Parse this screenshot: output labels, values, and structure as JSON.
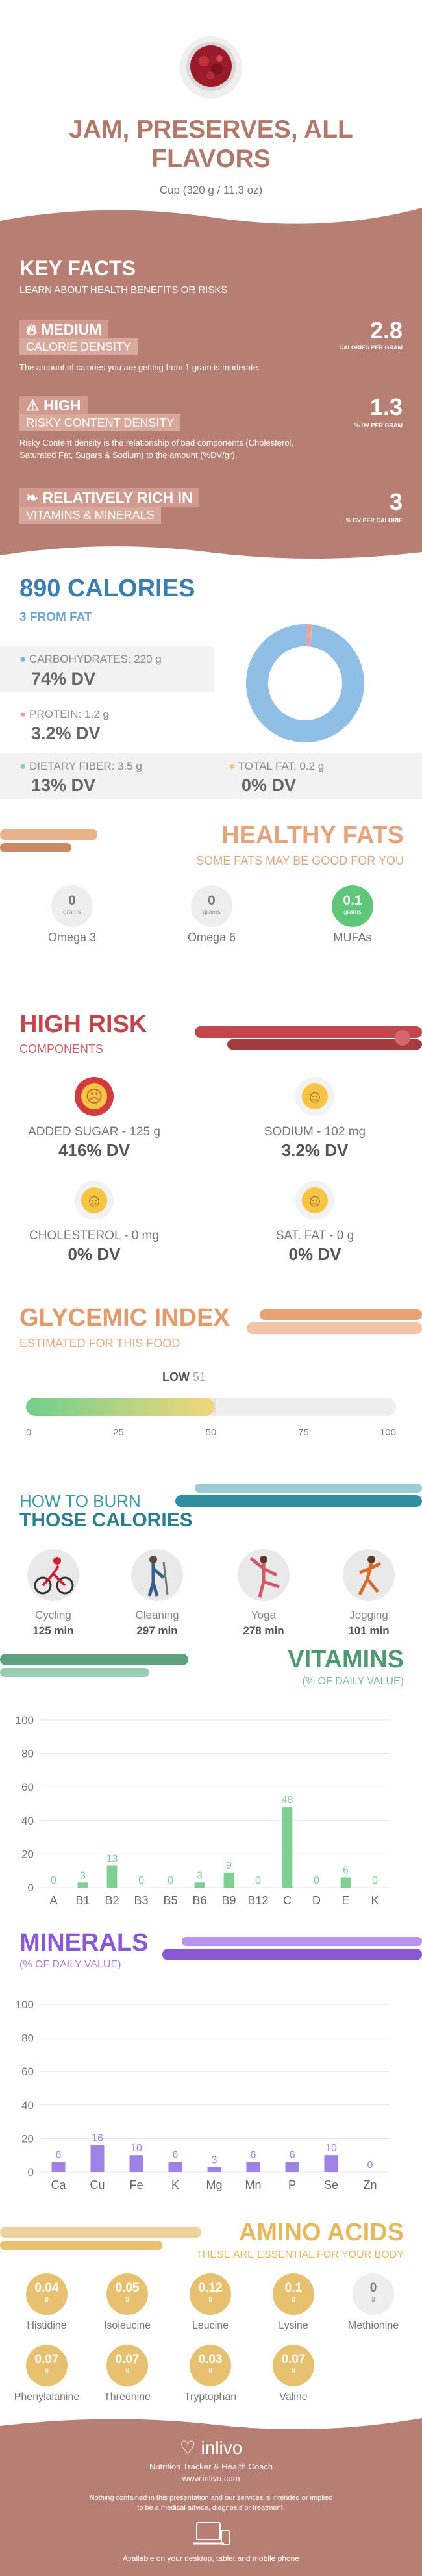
{
  "header": {
    "title_line1": "JAM, PRESERVES, ALL",
    "title_line2": "FLAVORS",
    "serving": "Cup (320 g / 11.3 oz)"
  },
  "key_facts": {
    "title": "KEY FACTS",
    "subtitle": "LEARN ABOUT HEALTH BENEFITS OR RISKS",
    "calorie": {
      "level": "MEDIUM",
      "label": "CALORIE DENSITY",
      "desc": "The amount of calories you are getting from 1 gram is moderate.",
      "value": "2.8",
      "unit": "CALORIES PER GRAM"
    },
    "risky": {
      "level": "HIGH",
      "label": "RISKY CONTENT DENSITY",
      "desc": "Risky Content density is the relationship of bad components (Cholesterol, Saturated Fat, Sugars & Sodium) to the amount (%DV/gr).",
      "value": "1.3",
      "unit": "% DV PER GRAM"
    },
    "vitamins": {
      "level": "RELATIVELY RICH  IN",
      "label": "VITAMINS & MINERALS",
      "value": "3",
      "unit": "% DV PER CALORIE"
    }
  },
  "calories": {
    "title": "890 CALORIES",
    "from_fat": "3 FROM FAT",
    "carbs_label": "CARBOHYDRATES: 220 g",
    "carbs_dv": "74% DV",
    "protein_label": "PROTEIN: 1.2 g",
    "protein_dv": "3.2% DV",
    "fiber_label": "DIETARY FIBER: 3.5 g",
    "fiber_dv": "13% DV",
    "fat_label": "TOTAL FAT: 0.2 g",
    "fat_dv": "0% DV",
    "donut": {
      "carbs_pct": 98.5,
      "protein_pct": 1.3,
      "fat_pct": 0.2
    }
  },
  "healthy_fats": {
    "title": "HEALTHY FATS",
    "subtitle": "SOME FATS MAY BE GOOD FOR YOU",
    "items": [
      {
        "value": "0",
        "unit": "grams",
        "name": "Omega 3"
      },
      {
        "value": "0",
        "unit": "grams",
        "name": "Omega 6"
      },
      {
        "value": "0.1",
        "unit": "grams",
        "name": "MUFAs"
      }
    ]
  },
  "high_risk": {
    "title": "HIGH RISK",
    "subtitle": "COMPONENTS",
    "items": [
      {
        "label": "ADDED SUGAR - 125 g",
        "dv": "416% DV"
      },
      {
        "label": "SODIUM - 102 mg",
        "dv": "3.2% DV"
      },
      {
        "label": "CHOLESTEROL - 0 mg",
        "dv": "0% DV"
      },
      {
        "label": "SAT. FAT - 0 g",
        "dv": "0% DV"
      }
    ]
  },
  "glycemic": {
    "title": "GLYCEMIC INDEX",
    "subtitle": "ESTIMATED FOR THIS FOOD",
    "level": "LOW",
    "value": 51,
    "ticks": [
      "0",
      "25",
      "50",
      "75",
      "100"
    ]
  },
  "burn": {
    "title1": "HOW TO BURN",
    "title2": "THOSE CALORIES",
    "items": [
      {
        "name": "Cycling",
        "time": "125 min"
      },
      {
        "name": "Cleaning",
        "time": "297 min"
      },
      {
        "name": "Yoga",
        "time": "278 min"
      },
      {
        "name": "Jogging",
        "time": "101 min"
      }
    ]
  },
  "vitamins": {
    "title": "VITAMINS",
    "subtitle": "(% OF DAILY VALUE)",
    "chart_data": {
      "type": "bar",
      "categories": [
        "A",
        "B1",
        "B2",
        "B3",
        "B5",
        "B6",
        "B9",
        "B12",
        "C",
        "D",
        "E",
        "K"
      ],
      "values": [
        0,
        3,
        13,
        0,
        0,
        3,
        9,
        0,
        48,
        0,
        6,
        0
      ],
      "labels": [
        "0",
        "3",
        "13",
        "0",
        "0",
        "3",
        "9",
        "0",
        "48",
        "0",
        "6",
        "0"
      ],
      "ylim": [
        0,
        100
      ],
      "yticks": [
        "0",
        "20",
        "40",
        "60",
        "80",
        "100"
      ]
    }
  },
  "minerals": {
    "title": "MINERALS",
    "subtitle": "(% OF DAILY VALUE)",
    "chart_data": {
      "type": "bar",
      "categories": [
        "Ca",
        "Cu",
        "Fe",
        "K",
        "Mg",
        "Mn",
        "P",
        "Se",
        "Zn"
      ],
      "values": [
        6,
        16,
        10,
        6,
        3,
        6,
        6,
        10,
        0
      ],
      "labels": [
        "6",
        "16",
        "10",
        "6",
        "3",
        "6",
        "6",
        "10",
        "0"
      ],
      "ylim": [
        0,
        100
      ],
      "yticks": [
        "0",
        "20",
        "40",
        "60",
        "80",
        "100"
      ]
    }
  },
  "amino": {
    "title": "AMINO ACIDS",
    "subtitle": "THESE ARE ESSENTIAL FOR YOUR BODY",
    "items": [
      {
        "value": "0.04",
        "unit": "g",
        "name": "Histidine"
      },
      {
        "value": "0.05",
        "unit": "g",
        "name": "Isoleucine"
      },
      {
        "value": "0.12",
        "unit": "g",
        "name": "Leucine"
      },
      {
        "value": "0.1",
        "unit": "g",
        "name": "Lysine"
      },
      {
        "value": "0",
        "unit": "g",
        "name": "Methionine"
      },
      {
        "value": "0.07",
        "unit": "g",
        "name": "Phenylalanine"
      },
      {
        "value": "0.07",
        "unit": "g",
        "name": "Threonine"
      },
      {
        "value": "0.03",
        "unit": "g",
        "name": "Tryptophan"
      },
      {
        "value": "0.07",
        "unit": "g",
        "name": "Valine"
      }
    ]
  },
  "footer": {
    "brand": "inlivo",
    "tagline": "Nutrition Tracker & Health Coach",
    "url": "www.inlivo.com",
    "disclaimer1": "Nothing contained in this presentation and our services is intended or implied",
    "disclaimer2": "to be a medical advice, diagnosis or treatment.",
    "available": "Available on your desktop, tablet and mobile phone"
  },
  "colors": {
    "brown": "#b77f73",
    "peach": "#e3a07a",
    "blue": "#3a7fb1",
    "red": "#c1474d",
    "orange": "#e49a6a",
    "teal": "#2f8fa1",
    "green": "#5ba37c",
    "purple": "#8a58d6",
    "gold": "#e8c170"
  }
}
